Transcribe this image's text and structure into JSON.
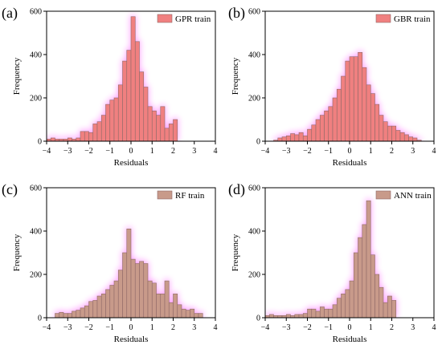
{
  "colors": {
    "fill_a": "#f08080",
    "fill_b": "#f08080",
    "fill_c": "#c89a8a",
    "fill_d": "#c89a8a",
    "edge": "#8f6a68",
    "glow": "#ff00ff"
  },
  "chart_data": [
    {
      "panel": "(a)",
      "type": "bar",
      "legend": "GPR train",
      "legend_placement": "top-right",
      "xlabel": "Residuals",
      "ylabel": "Frequency",
      "xlim": [
        -4,
        4
      ],
      "ylim": [
        0,
        600
      ],
      "xticks": [
        "−4",
        "−3",
        "−2",
        "−1",
        "0",
        "1",
        "2",
        "3",
        "4"
      ],
      "yticks": [
        "0",
        "200",
        "400",
        "600"
      ],
      "bin_width": 0.2,
      "x": [
        -3.9,
        -3.7,
        -3.5,
        -3.3,
        -3.1,
        -2.9,
        -2.7,
        -2.5,
        -2.3,
        -2.1,
        -1.9,
        -1.7,
        -1.5,
        -1.3,
        -1.1,
        -0.9,
        -0.7,
        -0.5,
        -0.3,
        -0.1,
        0.1,
        0.3,
        0.5,
        0.7,
        0.9,
        1.1,
        1.3,
        1.5,
        1.7,
        1.9,
        2.1
      ],
      "values": [
        10,
        15,
        10,
        10,
        10,
        15,
        10,
        15,
        45,
        45,
        40,
        80,
        90,
        120,
        170,
        190,
        200,
        260,
        370,
        420,
        575,
        460,
        320,
        250,
        160,
        140,
        120,
        160,
        60,
        80,
        100
      ]
    },
    {
      "panel": "(b)",
      "type": "bar",
      "legend": "GBR train",
      "legend_placement": "top-right",
      "xlabel": "Residuals",
      "ylabel": "Frequency",
      "xlim": [
        -4,
        4
      ],
      "ylim": [
        0,
        600
      ],
      "xticks": [
        "−4",
        "−3",
        "−2",
        "−1",
        "0",
        "1",
        "2",
        "3",
        "4"
      ],
      "yticks": [
        "0",
        "200",
        "400",
        "600"
      ],
      "bin_width": 0.2,
      "x": [
        -3.5,
        -3.3,
        -3.1,
        -2.9,
        -2.7,
        -2.5,
        -2.3,
        -2.1,
        -1.9,
        -1.7,
        -1.5,
        -1.3,
        -1.1,
        -0.9,
        -0.7,
        -0.5,
        -0.3,
        -0.1,
        0.1,
        0.3,
        0.5,
        0.7,
        0.9,
        1.1,
        1.3,
        1.5,
        1.7,
        1.9,
        2.1,
        2.3,
        2.5,
        2.7,
        2.9,
        3.1,
        3.3
      ],
      "values": [
        5,
        15,
        20,
        25,
        35,
        30,
        40,
        25,
        55,
        75,
        100,
        120,
        140,
        160,
        200,
        240,
        300,
        370,
        390,
        390,
        410,
        340,
        260,
        220,
        170,
        120,
        90,
        70,
        70,
        50,
        40,
        30,
        20,
        15,
        5
      ]
    },
    {
      "panel": "(c)",
      "type": "bar",
      "legend": "RF train",
      "legend_placement": "top-right",
      "xlabel": "Residuals",
      "ylabel": "Frequency",
      "xlim": [
        -4,
        4
      ],
      "ylim": [
        0,
        600
      ],
      "xticks": [
        "−4",
        "−3",
        "−2",
        "−1",
        "0",
        "1",
        "2",
        "3",
        "4"
      ],
      "yticks": [
        "0",
        "200",
        "400",
        "600"
      ],
      "bin_width": 0.2,
      "x": [
        -3.5,
        -3.3,
        -3.1,
        -2.9,
        -2.7,
        -2.5,
        -2.3,
        -2.1,
        -1.9,
        -1.7,
        -1.5,
        -1.3,
        -1.1,
        -0.9,
        -0.7,
        -0.5,
        -0.3,
        -0.1,
        0.1,
        0.3,
        0.5,
        0.7,
        0.9,
        1.1,
        1.3,
        1.5,
        1.7,
        1.9,
        2.1,
        2.3,
        2.5,
        2.7,
        2.9,
        3.1,
        3.3
      ],
      "values": [
        20,
        25,
        20,
        20,
        30,
        35,
        45,
        55,
        75,
        80,
        100,
        110,
        130,
        150,
        170,
        220,
        300,
        410,
        270,
        250,
        260,
        250,
        170,
        160,
        110,
        110,
        170,
        70,
        110,
        60,
        40,
        35,
        40,
        20,
        20
      ]
    },
    {
      "panel": "(d)",
      "type": "bar",
      "legend": "ANN train",
      "legend_placement": "top-right",
      "xlabel": "Residuals",
      "ylabel": "Frequency",
      "xlim": [
        -4,
        4
      ],
      "ylim": [
        0,
        600
      ],
      "xticks": [
        "−4",
        "−3",
        "−2",
        "−1",
        "0",
        "1",
        "2",
        "3",
        "4"
      ],
      "yticks": [
        "0",
        "200",
        "400",
        "600"
      ],
      "bin_width": 0.2,
      "x": [
        -3.9,
        -3.7,
        -3.5,
        -3.3,
        -3.1,
        -2.9,
        -2.7,
        -2.5,
        -2.3,
        -2.1,
        -1.9,
        -1.7,
        -1.5,
        -1.3,
        -1.1,
        -0.9,
        -0.7,
        -0.5,
        -0.3,
        -0.1,
        0.1,
        0.3,
        0.5,
        0.7,
        0.9,
        1.1,
        1.3,
        1.5,
        1.7,
        1.9,
        2.1
      ],
      "values": [
        10,
        15,
        10,
        10,
        10,
        15,
        10,
        15,
        15,
        20,
        40,
        40,
        30,
        50,
        40,
        40,
        60,
        90,
        110,
        130,
        170,
        300,
        370,
        430,
        540,
        290,
        200,
        140,
        70,
        100,
        80
      ]
    }
  ]
}
